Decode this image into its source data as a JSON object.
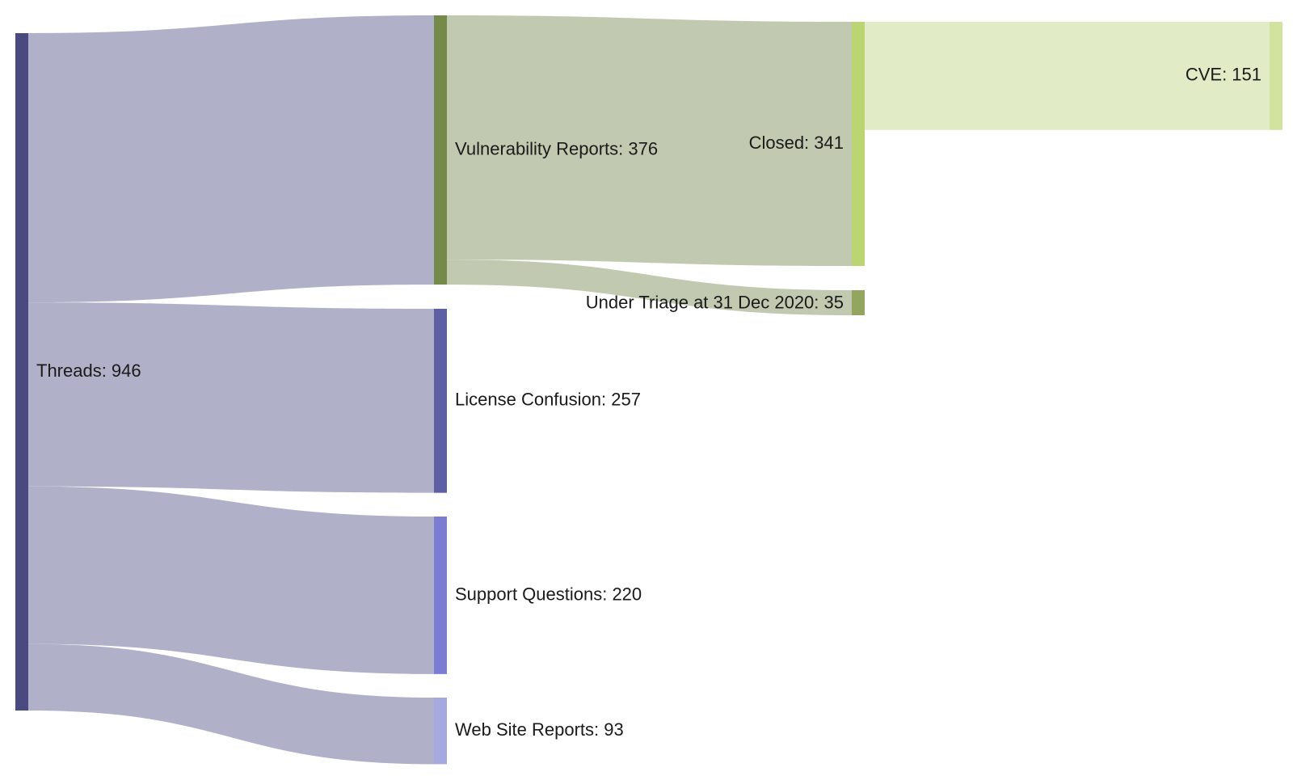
{
  "chart_data": {
    "type": "sankey",
    "title": "",
    "unit": "threads",
    "nodes": [
      {
        "id": "threads",
        "name": "Threads",
        "value": 946,
        "label": "Threads: 946",
        "color": "#4a4a80"
      },
      {
        "id": "vuln",
        "name": "Vulnerability Reports",
        "value": 376,
        "label": "Vulnerability Reports: 376",
        "color": "#758a48"
      },
      {
        "id": "license",
        "name": "License Confusion",
        "value": 257,
        "label": "License Confusion: 257",
        "color": "#5e5fa5"
      },
      {
        "id": "support",
        "name": "Support Questions",
        "value": 220,
        "label": "Support Questions: 220",
        "color": "#7c7dd2"
      },
      {
        "id": "website",
        "name": "Web Site Reports",
        "value": 93,
        "label": "Web Site Reports: 93",
        "color": "#a6a8e0"
      },
      {
        "id": "closed",
        "name": "Closed",
        "value": 341,
        "label": "Closed: 341",
        "color": "#bad571"
      },
      {
        "id": "triage",
        "name": "Under Triage at 31 Dec 2020",
        "value": 35,
        "label": "Under Triage at 31 Dec 2020: 35",
        "color": "#93a55f"
      },
      {
        "id": "cve",
        "name": "CVE",
        "value": 151,
        "label": "CVE: 151",
        "color": "#d2e29f"
      }
    ],
    "links": [
      {
        "source": "threads",
        "target": "vuln",
        "value": 376,
        "color": "#b0b0c9"
      },
      {
        "source": "threads",
        "target": "license",
        "value": 257,
        "color": "#b0b0c9"
      },
      {
        "source": "threads",
        "target": "support",
        "value": 220,
        "color": "#b0b0c9"
      },
      {
        "source": "threads",
        "target": "website",
        "value": 93,
        "color": "#b0b0c9"
      },
      {
        "source": "vuln",
        "target": "closed",
        "value": 341,
        "color": "#c1cab0"
      },
      {
        "source": "vuln",
        "target": "triage",
        "value": 35,
        "color": "#c1cab0"
      },
      {
        "source": "closed",
        "target": "cve",
        "value": 151,
        "color": "#e1ebc6"
      }
    ]
  }
}
